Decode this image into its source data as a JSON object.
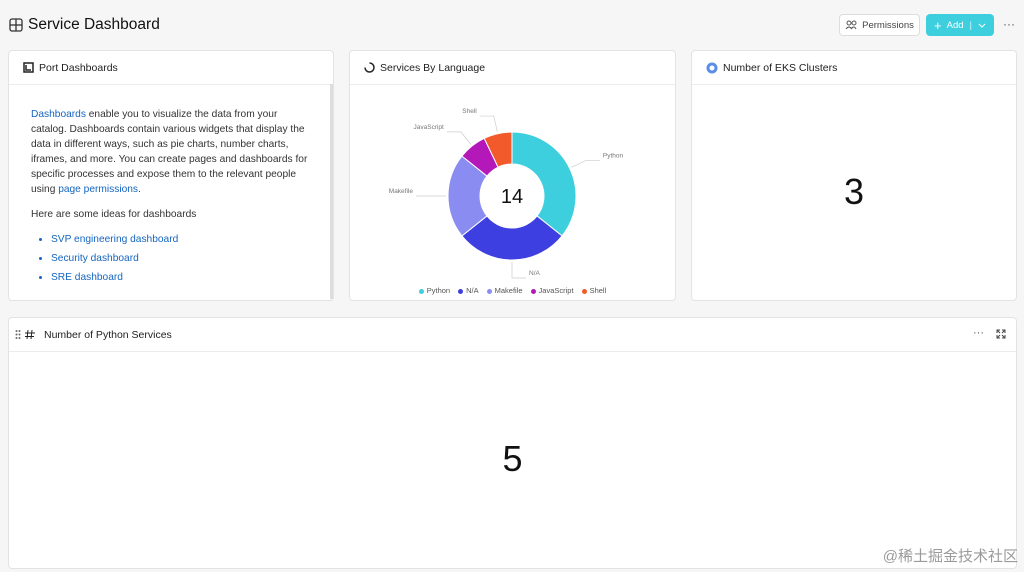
{
  "header": {
    "title": "Service Dashboard",
    "permissions": "Permissions",
    "add": "Add"
  },
  "port_widget": {
    "title": "Port Dashboards",
    "intro": [
      {
        "text": "Dashboards",
        "link": true
      },
      {
        "text": " enable you to visualize the data from your catalog. Dashboards contain various widgets that display the data in different ways, such as pie charts, number charts, iframes, and more. You can create pages and dashboards for specific processes and expose them to the relevant people using ",
        "link": false
      },
      {
        "text": "page permissions",
        "link": true
      },
      {
        "text": ".",
        "link": false
      }
    ],
    "ideas_heading": "Here are some ideas for dashboards",
    "ideas": [
      "SVP engineering dashboard",
      "Security dashboard",
      "SRE dashboard"
    ]
  },
  "chart_data": {
    "type": "pie",
    "title": "Services By Language",
    "total": 14,
    "categories": [
      "Python",
      "N/A",
      "Makefile",
      "JavaScript",
      "Shell"
    ],
    "values": [
      5,
      4,
      3,
      1,
      1
    ],
    "colors": [
      "#3ecfdf",
      "#3d3fe0",
      "#8b8cf2",
      "#b418b8",
      "#f25a2c"
    ]
  },
  "eks_widget": {
    "title": "Number of EKS Clusters",
    "value": 3
  },
  "python_widget": {
    "title": "Number of Python Services",
    "value": 5
  },
  "watermark": "@稀土掘金技术社区"
}
